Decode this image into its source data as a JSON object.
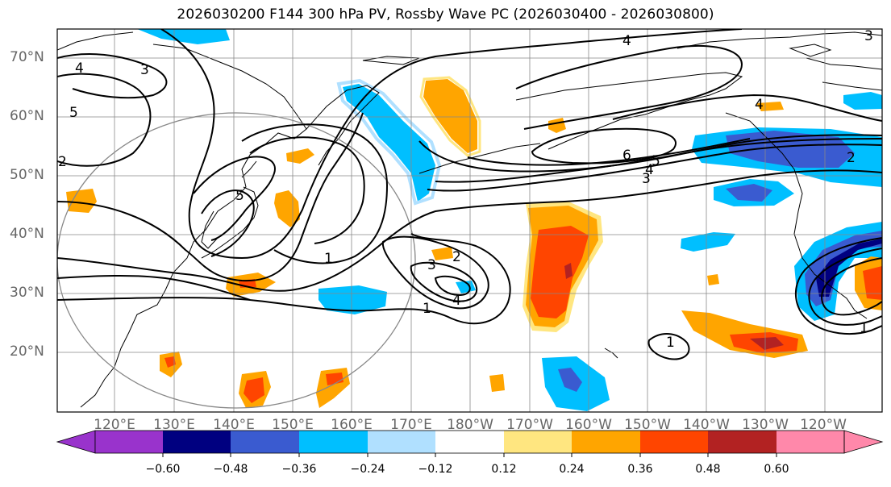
{
  "title": "2026030200 F144 300 hPa PV, Rossby Wave PC (2026030400 - 2026030800)",
  "lat_labels": [
    "70°N",
    "60°N",
    "50°N",
    "40°N",
    "30°N",
    "20°N"
  ],
  "lon_labels": [
    "120°E",
    "130°E",
    "140°E",
    "150°E",
    "160°E",
    "170°E",
    "180°W",
    "170°W",
    "160°W",
    "150°W",
    "140°W",
    "130°W",
    "120°W"
  ],
  "colorbar": {
    "tick_labels": [
      "−0.60",
      "−0.48",
      "−0.36",
      "−0.24",
      "−0.12",
      "0.12",
      "0.24",
      "0.36",
      "0.48",
      "0.60"
    ],
    "colors": [
      "#9933cc",
      "#000080",
      "#3a5bd0",
      "#00bfff",
      "#b0e0ff",
      "#ffffff",
      "#ffe680",
      "#ffa500",
      "#ff4500",
      "#b22222",
      "#ff88aa"
    ]
  },
  "contour_labels": {
    "c4_top": "4",
    "c4_left": "4",
    "c3_left": "3",
    "c5_left": "5",
    "c5_japan": "5",
    "c1_mid": "1",
    "c3_mid": "3",
    "c2_mid": "2",
    "c4_low": "4",
    "c1_low": "1",
    "c6": "6",
    "c5_east": "5",
    "c4_east": "4",
    "c3_east": "3",
    "c2_east": "2",
    "c1_south": "1",
    "c4_alaska": "4",
    "c3_arctic": "3",
    "c1_se": "1",
    "c2_west": "2"
  }
}
